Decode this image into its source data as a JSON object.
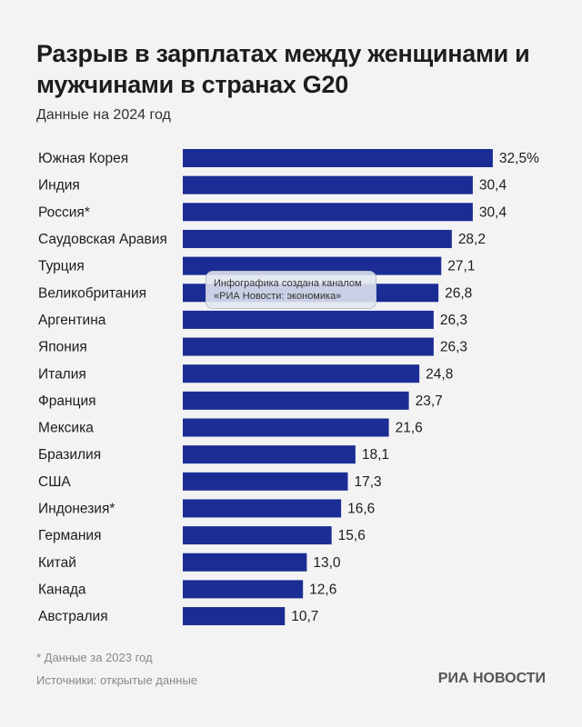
{
  "chart_data": {
    "type": "bar",
    "orientation": "horizontal",
    "title": "Разрыв в зарплатах между женщинами и мужчинами в странах G20",
    "subtitle": "Данные на 2024 год",
    "categories": [
      "Южная Корея",
      "Индия",
      "Россия*",
      "Саудовская Аравия",
      "Турция",
      "Великобритания",
      "Аргентина",
      "Япония",
      "Италия",
      "Франция",
      "Мексика",
      "Бразилия",
      "США",
      "Индонезия*",
      "Германия",
      "Китай",
      "Канада",
      "Австралия"
    ],
    "values": [
      32.5,
      30.4,
      30.4,
      28.2,
      27.1,
      26.8,
      26.3,
      26.3,
      24.8,
      23.7,
      21.6,
      18.1,
      17.3,
      16.6,
      15.6,
      13.0,
      12.6,
      10.7
    ],
    "value_labels": [
      "32,5%",
      "30,4",
      "30,4",
      "28,2",
      "27,1",
      "26,8",
      "26,3",
      "26,3",
      "24,8",
      "23,7",
      "21,6",
      "18,1",
      "17,3",
      "16,6",
      "15,6",
      "13,0",
      "12,6",
      "10,7"
    ],
    "color": "#1b2d94"
  },
  "watermark": [
    "Инфографика создана каналом",
    "«РИА Новости: экономика»"
  ],
  "footer": {
    "note": "* Данные за 2023 год",
    "source": "Источники: открытые данные",
    "logo": "РИА НОВОСТИ"
  }
}
